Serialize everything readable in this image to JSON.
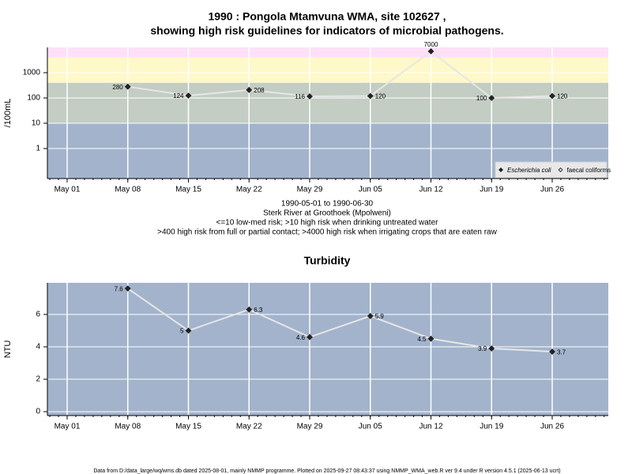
{
  "chart_data": [
    {
      "type": "line",
      "title": [
        "1990 : Pongola Mtamvuna WMA, site 102627 ,",
        "showing high risk guidelines for indicators of microbial pathogens."
      ],
      "notes": [
        "1990-05-01 to 1990-06-30",
        "Sterk River at Groothoek (Mpolweni)",
        "<=10 low-med risk; >10 high risk when drinking untreated water",
        ">400 high risk from full or partial contact; >4000 high risk when irrigating crops that are eaten raw"
      ],
      "ylabel": "/100mL",
      "log_y": true,
      "xticks": [
        "May 01",
        "May 08",
        "May 15",
        "May 22",
        "May 29",
        "Jun 05",
        "Jun 12",
        "Jun 19",
        "Jun 26"
      ],
      "x": [
        "May 08",
        "May 15",
        "May 22",
        "May 29",
        "Jun 05",
        "Jun 12",
        "Jun 19",
        "Jun 26"
      ],
      "series": [
        {
          "name": "Escherichia coli",
          "color": "#e6e6e6",
          "marker": "filled",
          "values": [
            280,
            124,
            208,
            116,
            120,
            7000,
            100,
            120
          ]
        },
        {
          "name": "faecal coliforms",
          "color": "#e6e6e6",
          "marker": "open",
          "values": [
            null,
            null,
            null,
            null,
            null,
            null,
            null,
            null
          ]
        }
      ],
      "ylim": [
        0.065,
        10000
      ],
      "yticks": [
        1,
        10,
        100,
        1000
      ],
      "thresholds": [
        10,
        400,
        4000
      ],
      "band_colors": [
        "#a3b3cc",
        "#c3cdc3",
        "#fff8c8",
        "#fde0f8"
      ],
      "grid": true,
      "legend": "bottom-right"
    },
    {
      "type": "line",
      "title": [
        "Turbidity"
      ],
      "ylabel": "NTU",
      "log_y": false,
      "xticks": [
        "May 01",
        "May 08",
        "May 15",
        "May 22",
        "May 29",
        "Jun 05",
        "Jun 12",
        "Jun 19",
        "Jun 26"
      ],
      "x": [
        "May 08",
        "May 15",
        "May 22",
        "May 29",
        "Jun 05",
        "Jun 12",
        "Jun 19",
        "Jun 26"
      ],
      "series": [
        {
          "name": "Turbidity",
          "color": "#e6e6e6",
          "marker": "filled",
          "values": [
            7.6,
            5,
            6.3,
            4.6,
            5.9,
            4.5,
            3.9,
            3.7
          ]
        }
      ],
      "ylim": [
        -0.24,
        7.95
      ],
      "yticks": [
        0,
        2,
        4,
        6
      ],
      "background": "#a3b3cc",
      "grid": true
    }
  ],
  "footer": "Data from D:/data_large/wq/wms.db dated 2025-08-01, mainly NMMP programme. Plotted on 2025-09-27 08:43:37 using NMMP_WMA_web.R ver 9.4 under R version 4.5.1 (2025-06-13 ucrt)"
}
